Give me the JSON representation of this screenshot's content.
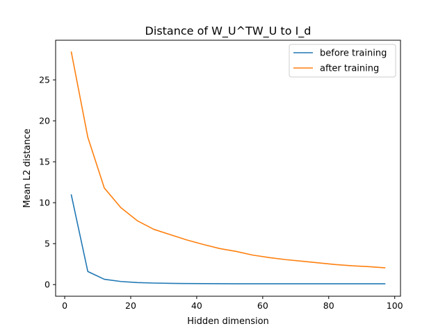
{
  "chart_data": {
    "type": "line",
    "title": "Distance of W_U^TW_U to I_d",
    "xlabel": "Hidden dimension",
    "ylabel": "Mean L2 distance",
    "xlim": [
      -2.75,
      101.75
    ],
    "ylim": [
      -1.42,
      29.84
    ],
    "xticks": [
      0,
      20,
      40,
      60,
      80,
      100
    ],
    "yticks": [
      0,
      5,
      10,
      15,
      20,
      25
    ],
    "grid": false,
    "legend_position": "top-right",
    "x": [
      2,
      7,
      12,
      17,
      22,
      27,
      32,
      37,
      42,
      47,
      52,
      57,
      62,
      67,
      72,
      77,
      82,
      87,
      92,
      97
    ],
    "series": [
      {
        "name": "before training",
        "color": "#1f77b4",
        "values": [
          10.95,
          1.6,
          0.65,
          0.38,
          0.25,
          0.19,
          0.15,
          0.13,
          0.12,
          0.11,
          0.1,
          0.1,
          0.1,
          0.1,
          0.1,
          0.1,
          0.1,
          0.1,
          0.1,
          0.1
        ]
      },
      {
        "name": "after training",
        "color": "#ff7f0e",
        "values": [
          28.4,
          18.0,
          11.8,
          9.4,
          7.8,
          6.75,
          6.1,
          5.45,
          4.9,
          4.4,
          4.05,
          3.6,
          3.3,
          3.05,
          2.85,
          2.65,
          2.45,
          2.3,
          2.2,
          2.05
        ]
      }
    ]
  }
}
